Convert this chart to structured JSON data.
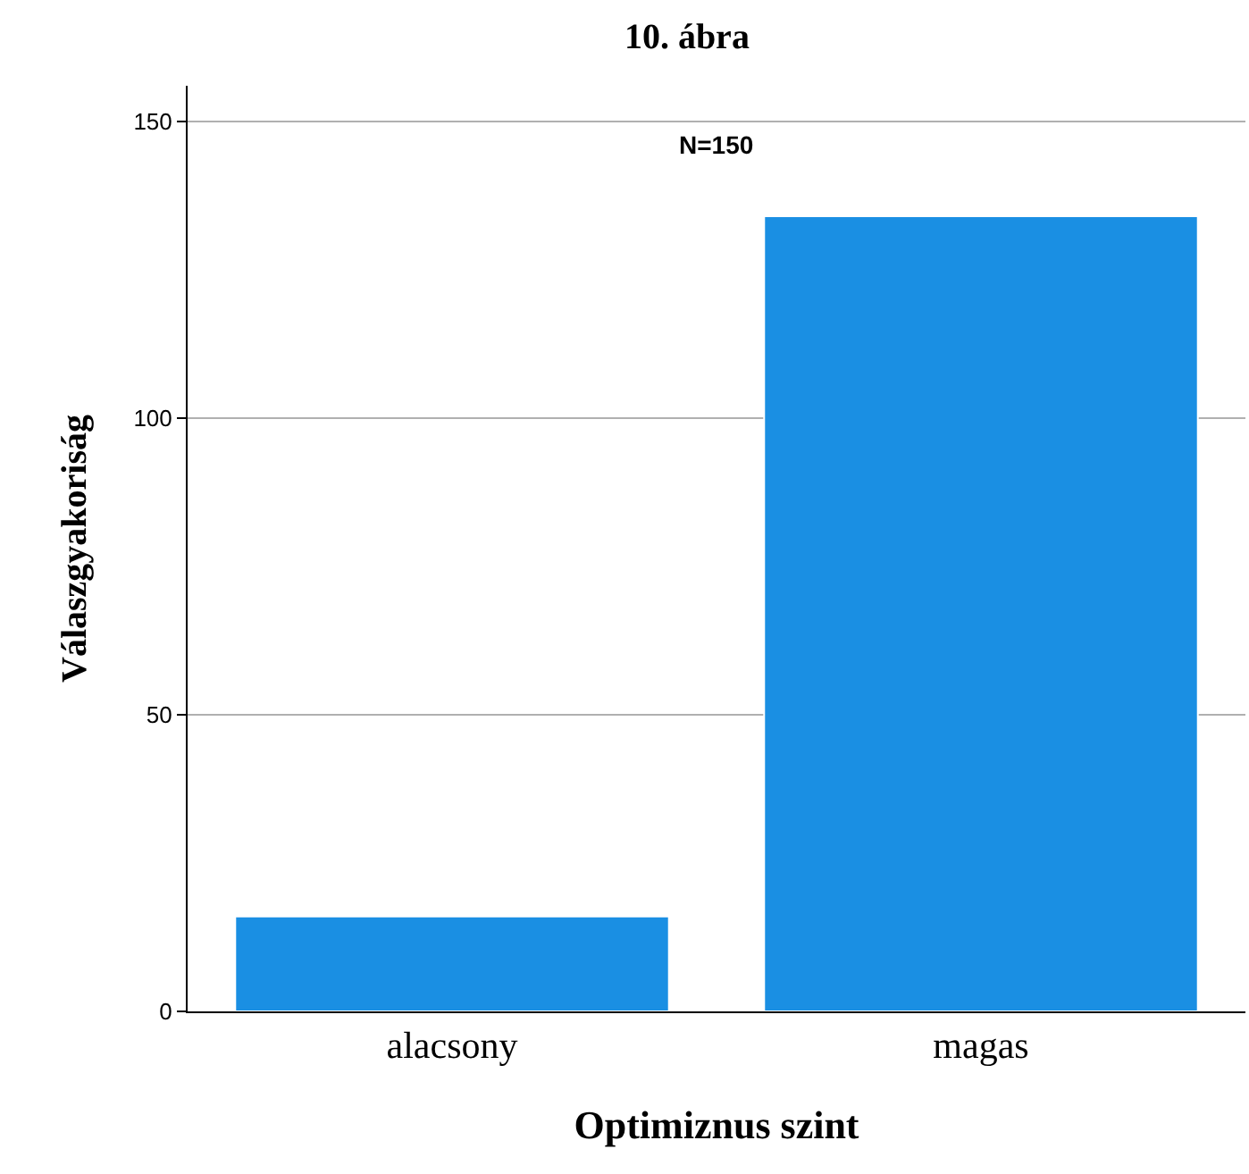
{
  "chart_data": {
    "type": "bar",
    "title": "10. ábra",
    "xlabel": "Optimiznus szint",
    "ylabel": "Válaszgyakoriság",
    "categories": [
      "alacsony",
      "magas"
    ],
    "values": [
      16,
      134
    ],
    "color": "#1a8fe3",
    "ylim": [
      0,
      156
    ],
    "yticks": [
      0,
      50,
      100,
      150
    ],
    "grid": "y",
    "annotations": [
      "N=150"
    ]
  }
}
